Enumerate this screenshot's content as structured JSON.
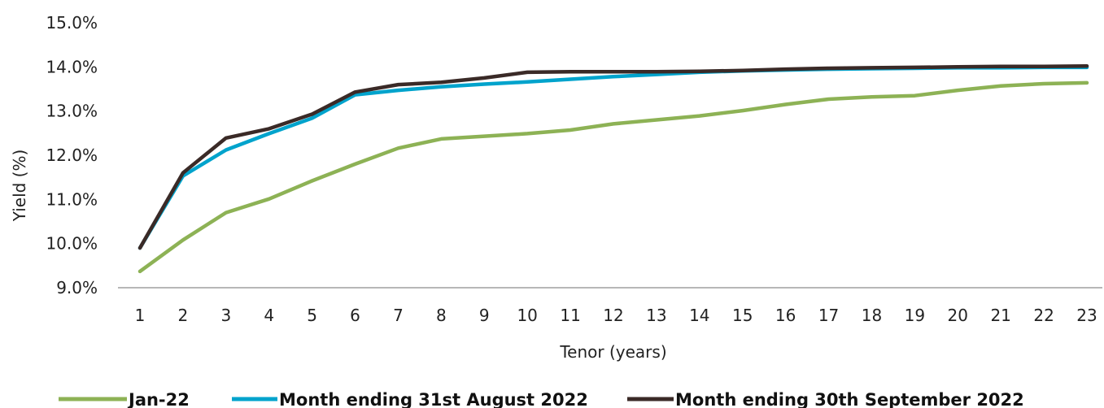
{
  "chart_data": {
    "type": "line",
    "xlabel": "Tenor (years)",
    "ylabel": "Yield (%)",
    "x": [
      1,
      2,
      3,
      4,
      5,
      6,
      7,
      8,
      9,
      10,
      11,
      12,
      13,
      14,
      15,
      16,
      17,
      18,
      19,
      20,
      21,
      22,
      23
    ],
    "x_tick_labels": [
      "1",
      "2",
      "3",
      "4",
      "5",
      "6",
      "7",
      "8",
      "9",
      "10",
      "11",
      "12",
      "13",
      "14",
      "15",
      "16",
      "17",
      "18",
      "19",
      "20",
      "21",
      "22",
      "23"
    ],
    "ylim": [
      9.0,
      15.0
    ],
    "y_ticks": [
      9.0,
      10.0,
      11.0,
      12.0,
      13.0,
      14.0,
      15.0
    ],
    "y_tick_labels": [
      "9.0%",
      "10.0%",
      "11.0%",
      "12.0%",
      "13.0%",
      "14.0%",
      "15.0%"
    ],
    "grid": false,
    "legend_position": "bottom",
    "series": [
      {
        "name": "Jan-22",
        "color": "#8DB255",
        "values": [
          9.37,
          10.08,
          10.7,
          11.01,
          11.42,
          11.8,
          12.16,
          12.37,
          12.43,
          12.49,
          12.57,
          12.71,
          12.8,
          12.89,
          13.01,
          13.15,
          13.27,
          13.32,
          13.35,
          13.47,
          13.57,
          13.62,
          13.64
        ]
      },
      {
        "name": "Month ending 31st August 2022",
        "color": "#00A3CC",
        "values": [
          9.9,
          11.53,
          12.12,
          12.49,
          12.84,
          13.37,
          13.47,
          13.55,
          13.61,
          13.66,
          13.72,
          13.78,
          13.83,
          13.88,
          13.91,
          13.93,
          13.95,
          13.96,
          13.97,
          13.98,
          13.98,
          13.99,
          13.99
        ]
      },
      {
        "name": "Month ending 30th September 2022",
        "color": "#3A2A27",
        "values": [
          9.9,
          11.6,
          12.39,
          12.6,
          12.93,
          13.43,
          13.6,
          13.65,
          13.75,
          13.88,
          13.89,
          13.89,
          13.89,
          13.9,
          13.92,
          13.95,
          13.97,
          13.98,
          13.99,
          14.0,
          14.01,
          14.01,
          14.02
        ]
      }
    ]
  }
}
